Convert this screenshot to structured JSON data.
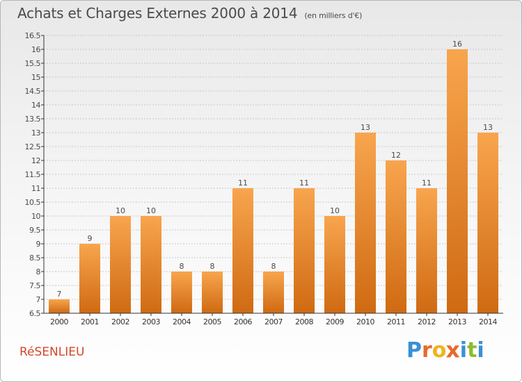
{
  "title": "Achats et Charges Externes 2000 à 2014",
  "subtitle": "(en milliers d'€)",
  "commune": "RéSENLIEU",
  "logo": {
    "letters": [
      {
        "char": "P",
        "color": "#3a8fd6"
      },
      {
        "char": "r",
        "color": "#e8692c"
      },
      {
        "char": "o",
        "color": "#f0b21b"
      },
      {
        "char": "x",
        "color": "#e8692c"
      },
      {
        "char": "i",
        "color": "#3a8fd6"
      },
      {
        "char": "t",
        "color": "#8bbd2a"
      },
      {
        "char": "i",
        "color": "#3a8fd6"
      }
    ]
  },
  "colors": {
    "bar_top": "#f8a54e",
    "bar_bottom": "#cf6a12",
    "axis": "#333333",
    "grid": "#c8c8c8",
    "text": "#4a4a4a"
  },
  "chart_data": {
    "type": "bar",
    "title": "Achats et Charges Externes 2000 à 2014",
    "subtitle": "(en milliers d'€)",
    "categories": [
      "2000",
      "2001",
      "2002",
      "2003",
      "2004",
      "2005",
      "2006",
      "2007",
      "2008",
      "2009",
      "2010",
      "2011",
      "2012",
      "2013",
      "2014"
    ],
    "values": [
      7,
      9,
      10,
      10,
      8,
      8,
      11,
      8,
      11,
      10,
      13,
      12,
      11,
      16,
      13
    ],
    "labels": [
      "7",
      "9",
      "10",
      "10",
      "8",
      "8",
      "11",
      "8",
      "11",
      "10",
      "13",
      "12",
      "11",
      "16",
      "13"
    ],
    "ylim": [
      6.5,
      16.5
    ],
    "yticks": [
      "6.5",
      "7",
      "7.5",
      "8",
      "8.5",
      "9",
      "9.5",
      "10",
      "10.5",
      "11",
      "11.5",
      "12",
      "12.5",
      "13",
      "13.5",
      "14",
      "14.5",
      "15",
      "15.5",
      "16",
      "16.5"
    ],
    "grid": true,
    "xlabel": "",
    "ylabel": ""
  }
}
